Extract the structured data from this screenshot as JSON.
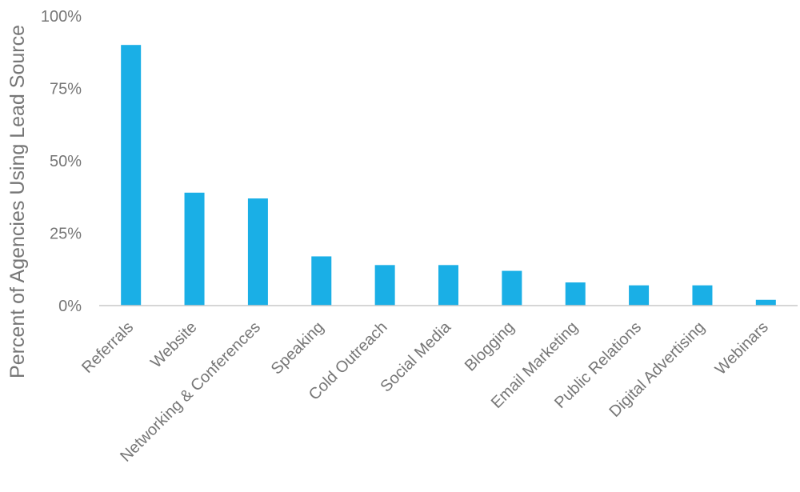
{
  "chart_data": {
    "type": "bar",
    "title": "",
    "xlabel": "",
    "ylabel": "Percent of Agencies Using Lead Source",
    "categories": [
      "Referrals",
      "Website",
      "Networking & Conferences",
      "Speaking",
      "Cold Outreach",
      "Social Media",
      "Blogging",
      "Email Marketing",
      "Public Relations",
      "Digital Advertising",
      "Webinars"
    ],
    "values": [
      90,
      39,
      37,
      17,
      14,
      14,
      12,
      8,
      7,
      7,
      2
    ],
    "ylim": [
      0,
      100
    ],
    "yticks": [
      0,
      25,
      50,
      75,
      100
    ],
    "ytick_labels": [
      "0%",
      "25%",
      "50%",
      "75%",
      "100%"
    ],
    "grid": false,
    "legend": "none",
    "bar_color": "#1aafe6",
    "axis_color": "#c9c9c9",
    "text_color": "#767676"
  }
}
